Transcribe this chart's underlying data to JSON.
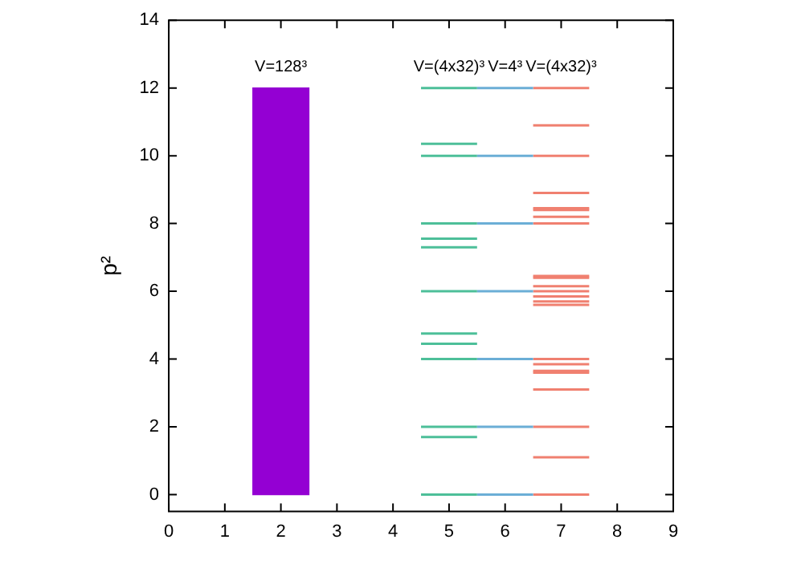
{
  "chart_data": {
    "type": "bar",
    "ylabel": "p²",
    "xlim": [
      0,
      9
    ],
    "xticks": [
      0,
      1,
      2,
      3,
      4,
      5,
      6,
      7,
      8,
      9
    ],
    "ylim": [
      -0.5,
      14
    ],
    "yticks": [
      0,
      2,
      4,
      6,
      8,
      10,
      12,
      14
    ],
    "grid": false,
    "legend": false,
    "series": [
      {
        "color": "#9400d3",
        "x": [
          2
        ],
        "values": [
          12
        ]
      },
      {
        "type": "line",
        "color": "#4dbf99",
        "x": [
          4.5,
          5.5
        ],
        "values": [
          12,
          12
        ]
      },
      {
        "type": "line",
        "color": "#4dbf99",
        "x": [
          4.5,
          5.5
        ],
        "values": [
          10.35,
          10.35
        ]
      },
      {
        "type": "line",
        "color": "#4dbf99",
        "x": [
          4.5,
          5.5
        ],
        "values": [
          10,
          10
        ]
      },
      {
        "type": "line",
        "color": "#4dbf99",
        "x": [
          4.5,
          5.5
        ],
        "values": [
          8,
          8
        ]
      },
      {
        "type": "line",
        "color": "#4dbf99",
        "x": [
          4.5,
          5.5
        ],
        "values": [
          7.55,
          7.55
        ]
      },
      {
        "type": "line",
        "color": "#4dbf99",
        "x": [
          4.5,
          5.5
        ],
        "values": [
          7.3,
          7.3
        ]
      },
      {
        "type": "line",
        "color": "#4dbf99",
        "x": [
          4.5,
          5.5
        ],
        "values": [
          6,
          6
        ]
      },
      {
        "type": "line",
        "color": "#4dbf99",
        "x": [
          4.5,
          5.5
        ],
        "values": [
          4.75,
          4.75
        ]
      },
      {
        "type": "line",
        "color": "#4dbf99",
        "x": [
          4.5,
          5.5
        ],
        "values": [
          4.45,
          4.45
        ]
      },
      {
        "type": "line",
        "color": "#4dbf99",
        "x": [
          4.5,
          5.5
        ],
        "values": [
          4,
          4
        ]
      },
      {
        "type": "line",
        "color": "#4dbf99",
        "x": [
          4.5,
          5.5
        ],
        "values": [
          2,
          2
        ]
      },
      {
        "type": "line",
        "color": "#4dbf99",
        "x": [
          4.5,
          5.5
        ],
        "values": [
          1.7,
          1.7
        ]
      },
      {
        "type": "line",
        "color": "#4dbf99",
        "x": [
          4.5,
          5.5
        ],
        "values": [
          0,
          0
        ]
      },
      {
        "type": "line",
        "color": "#6baed6",
        "x": [
          5.5,
          6.5
        ],
        "values": [
          12,
          12
        ]
      },
      {
        "type": "line",
        "color": "#6baed6",
        "x": [
          5.5,
          6.5
        ],
        "values": [
          10,
          10
        ]
      },
      {
        "type": "line",
        "color": "#6baed6",
        "x": [
          5.5,
          6.5
        ],
        "values": [
          8,
          8
        ]
      },
      {
        "type": "line",
        "color": "#6baed6",
        "x": [
          5.5,
          6.5
        ],
        "values": [
          6,
          6
        ]
      },
      {
        "type": "line",
        "color": "#6baed6",
        "x": [
          5.5,
          6.5
        ],
        "values": [
          4,
          4
        ]
      },
      {
        "type": "line",
        "color": "#6baed6",
        "x": [
          5.5,
          6.5
        ],
        "values": [
          2,
          2
        ]
      },
      {
        "type": "line",
        "color": "#6baed6",
        "x": [
          5.5,
          6.5
        ],
        "values": [
          0,
          0
        ]
      },
      {
        "type": "line",
        "color": "#f08070",
        "x": [
          6.5,
          7.5
        ],
        "values": [
          12,
          12
        ]
      },
      {
        "type": "line",
        "color": "#f08070",
        "x": [
          6.5,
          7.5
        ],
        "values": [
          10.9,
          10.9
        ]
      },
      {
        "type": "line",
        "color": "#f08070",
        "x": [
          6.5,
          7.5
        ],
        "values": [
          10,
          10
        ]
      },
      {
        "type": "line",
        "color": "#f08070",
        "x": [
          6.5,
          7.5
        ],
        "values": [
          8.9,
          8.9
        ]
      },
      {
        "type": "line",
        "color": "#f08070",
        "x": [
          6.5,
          7.5
        ],
        "values": [
          8.45,
          8.45
        ]
      },
      {
        "type": "line",
        "color": "#f08070",
        "x": [
          6.5,
          7.5
        ],
        "values": [
          8.4,
          8.4
        ]
      },
      {
        "type": "line",
        "color": "#f08070",
        "x": [
          6.5,
          7.5
        ],
        "values": [
          8.2,
          8.2
        ]
      },
      {
        "type": "line",
        "color": "#f08070",
        "x": [
          6.5,
          7.5
        ],
        "values": [
          8,
          8
        ]
      },
      {
        "type": "line",
        "color": "#f08070",
        "x": [
          6.5,
          7.5
        ],
        "values": [
          6.45,
          6.45
        ]
      },
      {
        "type": "line",
        "color": "#f08070",
        "x": [
          6.5,
          7.5
        ],
        "values": [
          6.4,
          6.4
        ]
      },
      {
        "type": "line",
        "color": "#f08070",
        "x": [
          6.5,
          7.5
        ],
        "values": [
          6.15,
          6.15
        ]
      },
      {
        "type": "line",
        "color": "#f08070",
        "x": [
          6.5,
          7.5
        ],
        "values": [
          6,
          6
        ]
      },
      {
        "type": "line",
        "color": "#f08070",
        "x": [
          6.5,
          7.5
        ],
        "values": [
          5.85,
          5.85
        ]
      },
      {
        "type": "line",
        "color": "#f08070",
        "x": [
          6.5,
          7.5
        ],
        "values": [
          5.7,
          5.7
        ]
      },
      {
        "type": "line",
        "color": "#f08070",
        "x": [
          6.5,
          7.5
        ],
        "values": [
          5.6,
          5.6
        ]
      },
      {
        "type": "line",
        "color": "#f08070",
        "x": [
          6.5,
          7.5
        ],
        "values": [
          4,
          4
        ]
      },
      {
        "type": "line",
        "color": "#f08070",
        "x": [
          6.5,
          7.5
        ],
        "values": [
          3.85,
          3.85
        ]
      },
      {
        "type": "line",
        "color": "#f08070",
        "x": [
          6.5,
          7.5
        ],
        "values": [
          3.65,
          3.65
        ]
      },
      {
        "type": "line",
        "color": "#f08070",
        "x": [
          6.5,
          7.5
        ],
        "values": [
          3.6,
          3.6
        ]
      },
      {
        "type": "line",
        "color": "#f08070",
        "x": [
          6.5,
          7.5
        ],
        "values": [
          3.1,
          3.1
        ]
      },
      {
        "type": "line",
        "color": "#f08070",
        "x": [
          6.5,
          7.5
        ],
        "values": [
          2,
          2
        ]
      },
      {
        "type": "line",
        "color": "#f08070",
        "x": [
          6.5,
          7.5
        ],
        "values": [
          1.1,
          1.1
        ]
      },
      {
        "type": "line",
        "color": "#f08070",
        "x": [
          6.5,
          7.5
        ],
        "values": [
          0,
          0
        ]
      }
    ],
    "annotations": [
      {
        "text": "V=128³",
        "x": 2,
        "y": 12
      },
      {
        "text": "V=(4x32)³",
        "x": 5,
        "y": 12
      },
      {
        "text": "V=4³",
        "x": 6,
        "y": 12
      },
      {
        "text": "V=(4x32)³",
        "x": 7,
        "y": 12
      }
    ]
  }
}
